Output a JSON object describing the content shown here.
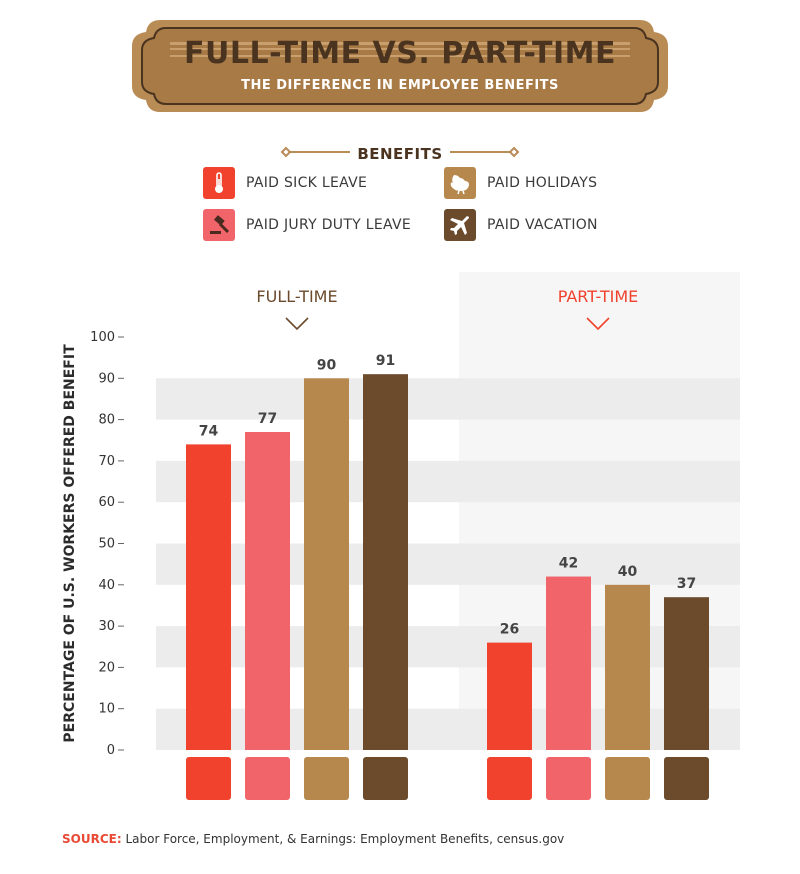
{
  "title": "FULL-TIME VS. PART-TIME",
  "subtitle": "THE DIFFERENCE IN EMPLOYEE BENEFITS",
  "legend": {
    "title": "BENEFITS",
    "items": [
      {
        "label": "PAID SICK LEAVE",
        "icon": "thermometer-icon",
        "color": "#f0422c"
      },
      {
        "label": "PAID HOLIDAYS",
        "icon": "turkey-icon",
        "color": "#b7884e"
      },
      {
        "label": "PAID JURY DUTY LEAVE",
        "icon": "gavel-icon",
        "color": "#f1646a"
      },
      {
        "label": "PAID VACATION",
        "icon": "airplane-icon",
        "color": "#6b4b2c"
      }
    ]
  },
  "chart_data": {
    "type": "bar",
    "ylabel": "PERCENTAGE OF U.S. WORKERS OFFERED BENEFIT",
    "ylim": [
      0,
      100
    ],
    "yticks": [
      0,
      10,
      20,
      30,
      40,
      50,
      60,
      70,
      80,
      90,
      100
    ],
    "groups": [
      "FULL-TIME",
      "PART-TIME"
    ],
    "series": [
      {
        "name": "PAID SICK LEAVE",
        "values": [
          74,
          26
        ],
        "color": "#f0422c"
      },
      {
        "name": "PAID JURY DUTY LEAVE",
        "values": [
          77,
          42
        ],
        "color": "#f1646a"
      },
      {
        "name": "PAID HOLIDAYS",
        "values": [
          90,
          40
        ],
        "color": "#b7884e"
      },
      {
        "name": "PAID VACATION",
        "values": [
          91,
          37
        ],
        "color": "#6b4b2c"
      }
    ],
    "group_colors": [
      "#6b4b2c",
      "#f0422c"
    ],
    "grid": true
  },
  "source": {
    "label": "SOURCE:",
    "text": "Labor Force, Employment, & Earnings: Employment Benefits, census.gov"
  }
}
